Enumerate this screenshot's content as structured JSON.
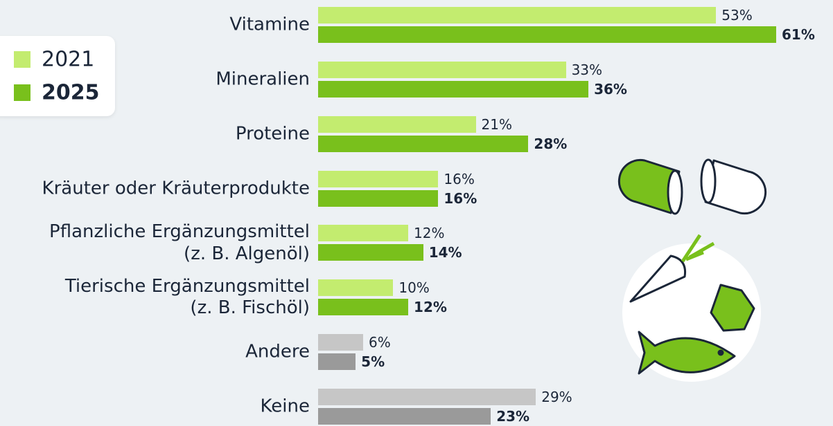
{
  "chart_data": {
    "type": "bar",
    "orientation": "horizontal",
    "categories": [
      "Vitamine",
      "Mineralien",
      "Proteine",
      "Kräuter oder Kräuterprodukte",
      "Pflanzliche Ergänzungsmittel\n(z. B. Algenöl)",
      "Tierische Ergänzungsmittel\n(z. B. Fischöl)",
      "Andere",
      "Keine"
    ],
    "series": [
      {
        "name": "2021",
        "color": "#c3ec6f",
        "colors": [
          "#c3ec6f",
          "#c3ec6f",
          "#c3ec6f",
          "#c3ec6f",
          "#c3ec6f",
          "#c3ec6f",
          "#c6c6c6",
          "#c6c6c6"
        ],
        "values": [
          53,
          33,
          21,
          16,
          12,
          10,
          6,
          29
        ],
        "value_labels": [
          "53%",
          "33%",
          "21%",
          "16%",
          "12%",
          "10%",
          "6%",
          "29%"
        ]
      },
      {
        "name": "2025",
        "color": "#79c01c",
        "colors": [
          "#79c01c",
          "#79c01c",
          "#79c01c",
          "#79c01c",
          "#79c01c",
          "#79c01c",
          "#9a9a9a",
          "#9a9a9a"
        ],
        "values": [
          61,
          36,
          28,
          16,
          14,
          12,
          5,
          23
        ],
        "value_labels": [
          "61%",
          "36%",
          "28%",
          "16%",
          "14%",
          "12%",
          "5%",
          "23%"
        ]
      }
    ],
    "legend_position": "upper-left"
  }
}
